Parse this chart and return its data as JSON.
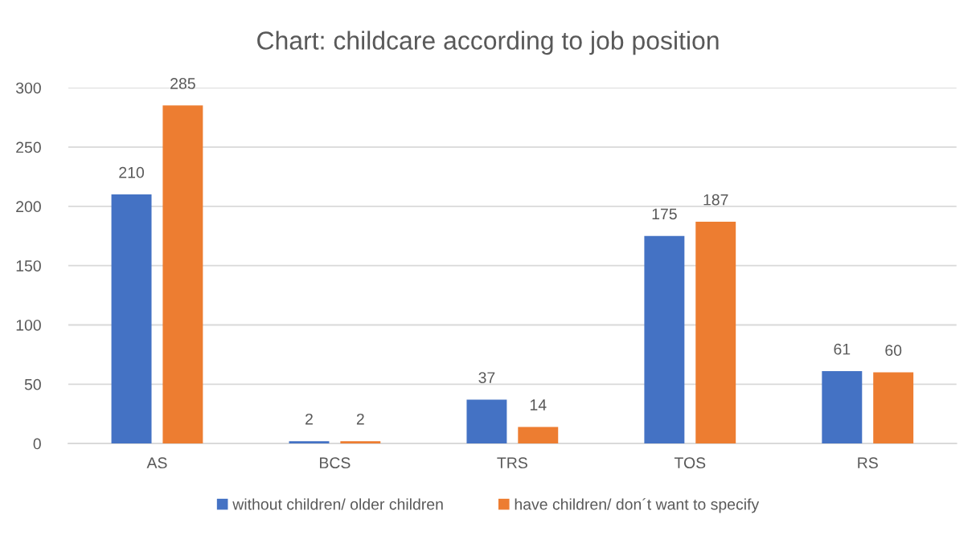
{
  "chart_data": {
    "type": "bar",
    "title": "Chart: childcare according to job position",
    "categories": [
      "AS",
      "BCS",
      "TRS",
      "TOS",
      "RS"
    ],
    "series": [
      {
        "name": "without children/ older children",
        "color": "#4472c4",
        "values": [
          210,
          2,
          37,
          175,
          61
        ]
      },
      {
        "name": "have children/ don´t want to specify",
        "color": "#ed7d31",
        "values": [
          285,
          2,
          14,
          187,
          60
        ]
      }
    ],
    "ylim": [
      0,
      300
    ],
    "yticks": [
      0,
      50,
      100,
      150,
      200,
      250,
      300
    ],
    "grid": "y",
    "legend": "bottom",
    "data_labels": true
  }
}
